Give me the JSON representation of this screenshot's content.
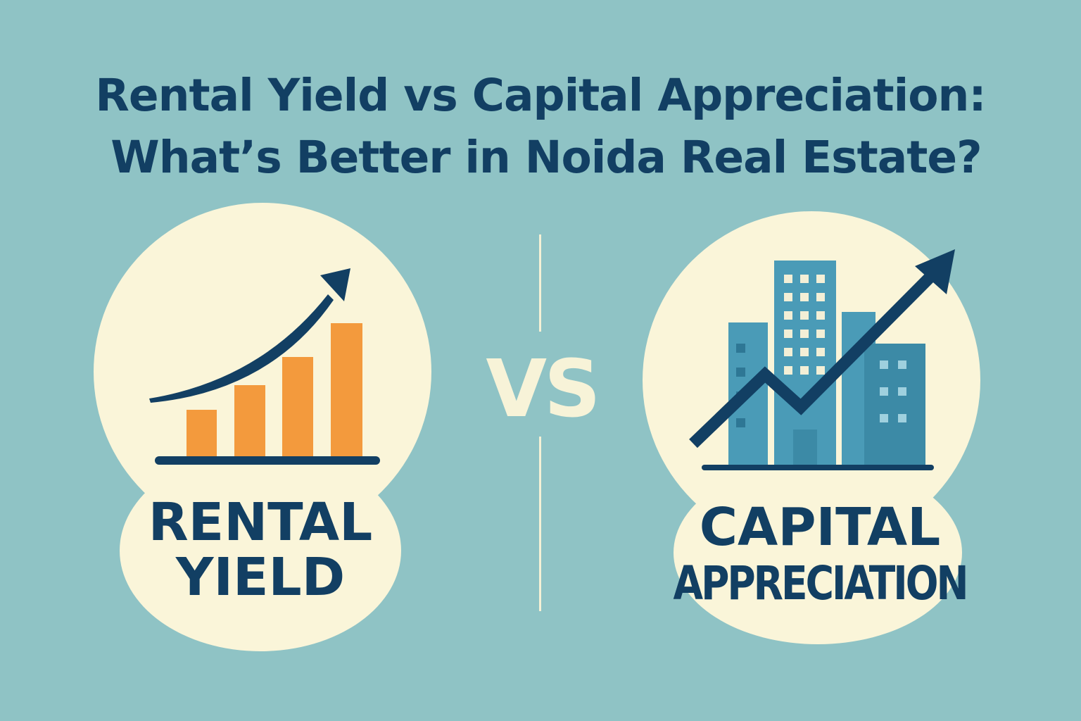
{
  "title": {
    "line1": "Rental Yield vs Capital Appreciation:",
    "line2": "What’s Better in Noida Real Estate?"
  },
  "vs_label": "VS",
  "rental_panel": {
    "label_line1": "RENTAL",
    "label_line2": "YIELD",
    "icon": "bar-chart-rising-arrow-icon"
  },
  "capital_panel": {
    "label_line1": "CAPITAL",
    "label_line2": "APPRECIATION",
    "icon": "buildings-trend-arrow-icon"
  },
  "colors": {
    "background": "#8fc3c5",
    "panel_cream": "#faf5d9",
    "navy": "#123f63",
    "orange": "#f39a3d",
    "building_blue": "#4a9bb7",
    "building_dark": "#3c8aa6"
  }
}
